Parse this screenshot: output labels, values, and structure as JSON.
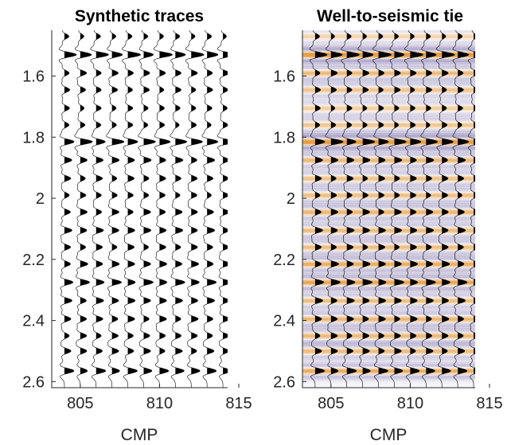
{
  "colors": {
    "wiggle": "#000000",
    "axis": "#262626",
    "seismic_positive": "#e2922e",
    "seismic_negative": "#7c70ab",
    "background": "#ffffff"
  },
  "chart_data": [
    {
      "type": "seismic-wiggle",
      "title": "Synthetic traces",
      "xlabel": "CMP",
      "ylabel": "",
      "xlim": [
        803,
        815
      ],
      "ylim": [
        1.45,
        2.62
      ],
      "y_reversed": true,
      "grid": false,
      "xticks": [
        805,
        810,
        815
      ],
      "xtick_labels": [
        "805",
        "810",
        "815"
      ],
      "yticks": [
        1.6,
        1.8,
        2.0,
        2.2,
        2.4,
        2.6
      ],
      "ytick_labels": [
        "1.6",
        "1.8",
        "2",
        "2.2",
        "2.4",
        "2.6"
      ],
      "trace_cmps": [
        804,
        805,
        806,
        807,
        808,
        809,
        810,
        811,
        812,
        813,
        814
      ],
      "wiggle_fill": "positive",
      "background_image": false,
      "reflectors": [
        {
          "time": 1.47,
          "strength": 0.35
        },
        {
          "time": 1.53,
          "strength": 1.0
        },
        {
          "time": 1.59,
          "strength": 0.5
        },
        {
          "time": 1.645,
          "strength": 0.45
        },
        {
          "time": 1.705,
          "strength": 0.4
        },
        {
          "time": 1.76,
          "strength": 0.4
        },
        {
          "time": 1.815,
          "strength": 0.95
        },
        {
          "time": 1.875,
          "strength": 0.6
        },
        {
          "time": 1.935,
          "strength": 0.5
        },
        {
          "time": 1.99,
          "strength": 0.45
        },
        {
          "time": 2.045,
          "strength": 0.55
        },
        {
          "time": 2.105,
          "strength": 0.6
        },
        {
          "time": 2.16,
          "strength": 0.5
        },
        {
          "time": 2.215,
          "strength": 0.6
        },
        {
          "time": 2.275,
          "strength": 0.75
        },
        {
          "time": 2.335,
          "strength": 0.6
        },
        {
          "time": 2.395,
          "strength": 0.55
        },
        {
          "time": 2.45,
          "strength": 0.5
        },
        {
          "time": 2.5,
          "strength": 0.55
        },
        {
          "time": 2.565,
          "strength": 0.75
        }
      ]
    },
    {
      "type": "seismic-wiggle",
      "title": "Well-to-seismic tie",
      "xlabel": "CMP",
      "ylabel": "",
      "xlim": [
        803,
        815
      ],
      "ylim": [
        1.45,
        2.62
      ],
      "y_reversed": true,
      "grid": false,
      "xticks": [
        805,
        810,
        815
      ],
      "xtick_labels": [
        "805",
        "810",
        "815"
      ],
      "yticks": [
        1.6,
        1.8,
        2.0,
        2.2,
        2.4,
        2.6
      ],
      "ytick_labels": [
        "1.6",
        "1.8",
        "2",
        "2.2",
        "2.4",
        "2.6"
      ],
      "trace_cmps": [
        804,
        805,
        806,
        807,
        808,
        809,
        810,
        811,
        812,
        813,
        814
      ],
      "wiggle_fill": "positive",
      "background_image": true,
      "colormap": [
        "#7c70ab",
        "#ffffff",
        "#e2922e"
      ],
      "reflectors": [
        {
          "time": 1.47,
          "strength": 0.35
        },
        {
          "time": 1.53,
          "strength": 1.0
        },
        {
          "time": 1.59,
          "strength": 0.5
        },
        {
          "time": 1.645,
          "strength": 0.45
        },
        {
          "time": 1.705,
          "strength": 0.4
        },
        {
          "time": 1.76,
          "strength": 0.4
        },
        {
          "time": 1.815,
          "strength": 0.95
        },
        {
          "time": 1.875,
          "strength": 0.6
        },
        {
          "time": 1.935,
          "strength": 0.5
        },
        {
          "time": 1.99,
          "strength": 0.45
        },
        {
          "time": 2.045,
          "strength": 0.55
        },
        {
          "time": 2.105,
          "strength": 0.6
        },
        {
          "time": 2.16,
          "strength": 0.5
        },
        {
          "time": 2.215,
          "strength": 0.6
        },
        {
          "time": 2.275,
          "strength": 0.75
        },
        {
          "time": 2.335,
          "strength": 0.6
        },
        {
          "time": 2.395,
          "strength": 0.55
        },
        {
          "time": 2.45,
          "strength": 0.5
        },
        {
          "time": 2.5,
          "strength": 0.55
        },
        {
          "time": 2.565,
          "strength": 0.75
        }
      ]
    }
  ]
}
